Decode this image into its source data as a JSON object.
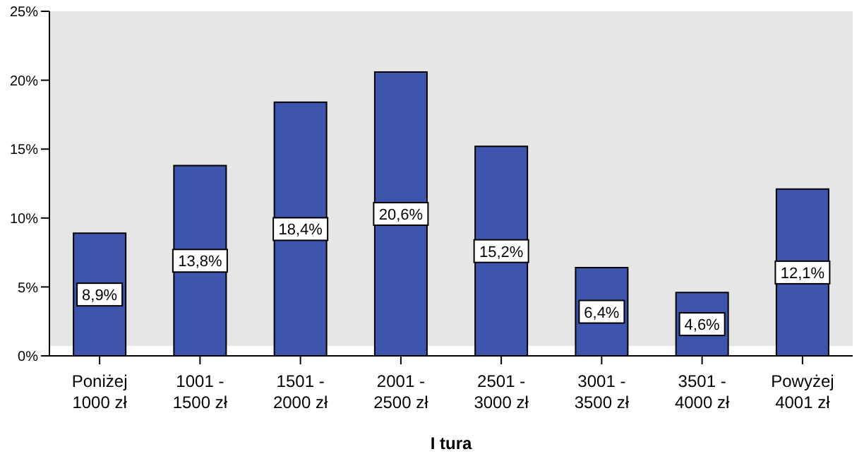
{
  "chart_data": {
    "type": "bar",
    "xlabel": "I tura",
    "categories": [
      "Poniżej\n1000 zł",
      "1001 -\n1500 zł",
      "1501 -\n2000 zł",
      "2001 -\n2500 zł",
      "2501 -\n3000 zł",
      "3001 -\n3500 zł",
      "3501 -\n4000 zł",
      "Powyżej\n4001 zł"
    ],
    "values": [
      8.9,
      13.8,
      18.4,
      20.6,
      15.2,
      6.4,
      4.6,
      12.1
    ],
    "value_labels": [
      "8,9%",
      "13,8%",
      "18,4%",
      "20,6%",
      "15,2%",
      "6,4%",
      "4,6%",
      "12,1%"
    ],
    "color": "#3e55ad",
    "ylim": [
      0,
      25
    ],
    "yticks": [
      {
        "value": 0,
        "label": "0%"
      },
      {
        "value": 5,
        "label": "5%"
      },
      {
        "value": 10,
        "label": "10%"
      },
      {
        "value": 15,
        "label": "15%"
      },
      {
        "value": 20,
        "label": "20%"
      },
      {
        "value": 25,
        "label": "25%"
      }
    ]
  }
}
